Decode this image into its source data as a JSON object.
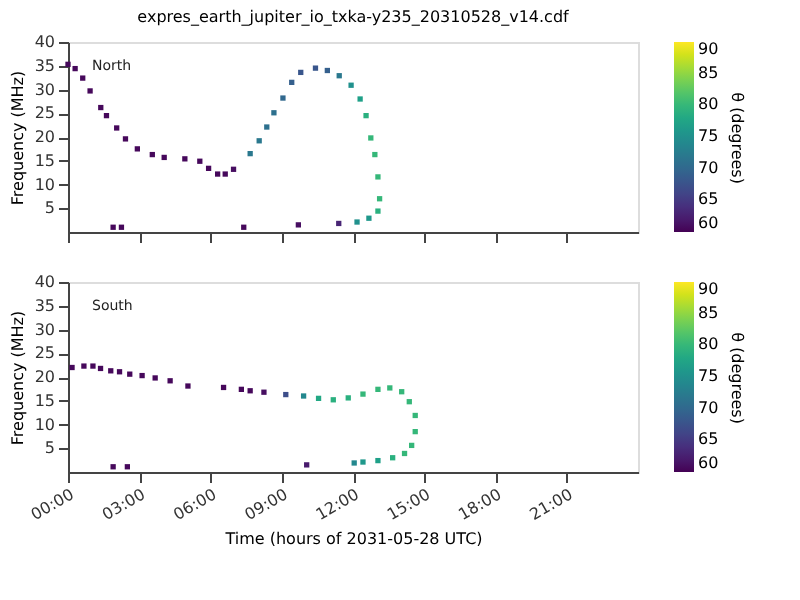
{
  "chart_data": [
    {
      "type": "scatter",
      "title": "expres_earth_jupiter_io_txka-y235_20310528_v14.cdf",
      "ylabel": "Frequency (MHz)",
      "clabel": "θ (degrees)",
      "annotations": [
        "North"
      ],
      "marker": "square",
      "grid": false,
      "tick_labels": "y",
      "xlim": [
        0,
        24
      ],
      "xticks": [
        0,
        3,
        6,
        9,
        12,
        15,
        18,
        21
      ],
      "ylim": [
        0,
        40
      ],
      "yticks": [
        5,
        10,
        15,
        20,
        25,
        30,
        35,
        40
      ],
      "clim": [
        60,
        90
      ],
      "cticks": [
        60,
        65,
        70,
        75,
        80,
        85,
        90
      ],
      "x": [
        0,
        0.3,
        0.62,
        0.93,
        1.38,
        1.62,
        2.05,
        2.42,
        2.92,
        3.55,
        4.05,
        4.92,
        5.55,
        5.92,
        6.3,
        6.62,
        6.97,
        7.67,
        8.05,
        8.37,
        8.67,
        9.05,
        9.42,
        9.8,
        10.42,
        10.92,
        11.42,
        11.92,
        12.3,
        12.55,
        12.75,
        12.92,
        13.05,
        13.12,
        13.05,
        12.67,
        12.17,
        1.9,
        2.25,
        7.4,
        9.7,
        11.4
      ],
      "values": [
        35.3,
        34.4,
        32.4,
        29.7,
        26.2,
        24.5,
        21.9,
        19.6,
        17.5,
        16.3,
        15.7,
        15.4,
        14.9,
        13.4,
        12.2,
        12.2,
        13.2,
        16.5,
        19.2,
        22.1,
        25.1,
        28.2,
        31.5,
        33.6,
        34.5,
        34,
        32.9,
        30.9,
        28,
        24.5,
        19.8,
        16.3,
        11.6,
        7,
        4.4,
        2.9,
        2.1,
        1,
        1,
        1,
        1.5,
        1.8
      ],
      "cvalues": [
        60.5,
        60.5,
        60.5,
        60.5,
        60.5,
        60.5,
        60.5,
        60.5,
        60.5,
        60.5,
        60.5,
        60.5,
        60.5,
        60.5,
        60.5,
        60.5,
        61,
        72,
        72,
        71,
        71,
        70,
        69,
        68,
        68,
        69,
        72,
        75,
        77,
        79,
        80,
        80,
        80,
        80,
        79,
        76,
        75,
        60.5,
        60.5,
        60.5,
        61,
        63
      ]
    },
    {
      "type": "scatter",
      "xlabel": "Time (hours of 2031-05-28 UTC)",
      "ylabel": "Frequency (MHz)",
      "clabel": "θ (degrees)",
      "annotations": [
        "South"
      ],
      "marker": "square",
      "grid": false,
      "xlim": [
        0,
        24
      ],
      "xticks": [
        {
          "value": 0,
          "label": "00:00"
        },
        {
          "value": 3,
          "label": "03:00"
        },
        {
          "value": 6,
          "label": "06:00"
        },
        {
          "value": 9,
          "label": "09:00"
        },
        {
          "value": 12,
          "label": "12:00"
        },
        {
          "value": 15,
          "label": "15:00"
        },
        {
          "value": 18,
          "label": "18:00"
        },
        {
          "value": 21,
          "label": "21:00"
        }
      ],
      "ylim": [
        0,
        40
      ],
      "yticks": [
        5,
        10,
        15,
        20,
        25,
        30,
        35,
        40
      ],
      "clim": [
        60,
        90
      ],
      "cticks": [
        60,
        65,
        70,
        75,
        80,
        85,
        90
      ],
      "x": [
        0.17,
        0.67,
        1.05,
        1.37,
        1.8,
        2.17,
        2.6,
        3.12,
        3.67,
        4.3,
        5.05,
        6.55,
        7.3,
        7.67,
        8.25,
        9.17,
        9.92,
        10.55,
        11.17,
        11.8,
        12.42,
        13.05,
        13.55,
        14.05,
        14.37,
        14.62,
        14.62,
        14.47,
        14.17,
        13.67,
        13.05,
        12.42,
        12.05,
        10.05,
        1.9,
        2.5
      ],
      "values": [
        22,
        22.3,
        22.3,
        21.8,
        21.3,
        21.1,
        20.6,
        20.3,
        19.8,
        19.2,
        18.1,
        17.8,
        17.4,
        17.1,
        16.8,
        16.3,
        16,
        15.5,
        15.2,
        15.6,
        16.4,
        17.4,
        17.7,
        16.9,
        14.8,
        11.9,
        8.5,
        5.6,
        3.9,
        3,
        2.4,
        2.1,
        1.9,
        1.5,
        1.1,
        1.1
      ],
      "cvalues": [
        60.5,
        60.5,
        60.5,
        60.5,
        60.5,
        60.5,
        60.5,
        60.5,
        60.5,
        60.5,
        60.5,
        60.5,
        60.5,
        60.5,
        61,
        67,
        74,
        78,
        79,
        79,
        80,
        80,
        80,
        80,
        80,
        80,
        80,
        80,
        80,
        79,
        77,
        76,
        74,
        62,
        60.5,
        60.5
      ]
    }
  ]
}
